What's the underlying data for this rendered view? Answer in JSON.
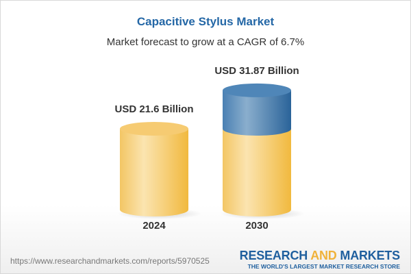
{
  "chart_data": {
    "type": "bar",
    "title": "Capacitive Stylus Market",
    "subtitle": "Market forecast to grow at a CAGR of 6.7%",
    "categories": [
      "2024",
      "2030"
    ],
    "values": [
      21.6,
      31.87
    ],
    "data_labels": [
      "USD 21.6 Billion",
      "USD 31.87 Billion"
    ],
    "unit": "USD Billion",
    "style": "3d-cylinder",
    "colors": {
      "base": "#f5c45a",
      "growth": "#3f79ad"
    }
  },
  "footer": {
    "url": "https://www.researchandmarkets.com/reports/5970525",
    "logo_part1": "RESEARCH ",
    "logo_part2": "AND",
    "logo_part3": " MARKETS",
    "logo_tagline": "THE WORLD'S LARGEST MARKET RESEARCH STORE"
  }
}
